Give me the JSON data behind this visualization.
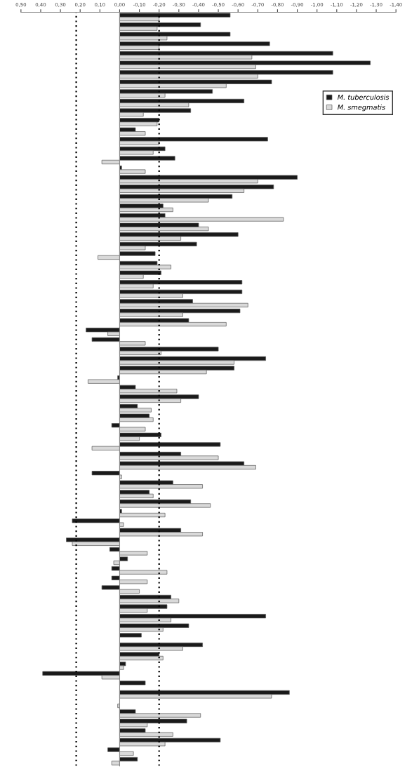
{
  "chart_data": {
    "type": "bar",
    "orientation": "horizontal",
    "categories": [
      null,
      null,
      null,
      null,
      null,
      null,
      null,
      null,
      null,
      null,
      null,
      null,
      null,
      null,
      null,
      null,
      null,
      null,
      null,
      null,
      null,
      null,
      null,
      null,
      null,
      null,
      null,
      null,
      null,
      null,
      null,
      null,
      null,
      null,
      null,
      null,
      null,
      null,
      null,
      null,
      null,
      null,
      null,
      null,
      null,
      null,
      null,
      null,
      null,
      null,
      null,
      null,
      null,
      null,
      null,
      null,
      null,
      null,
      null,
      null,
      null,
      null,
      null,
      null,
      null,
      null,
      null,
      null,
      null,
      null,
      null,
      null,
      null,
      null,
      null,
      null,
      null,
      null,
      null
    ],
    "series": [
      {
        "name": "M. tuberculosis",
        "color": "#1a1a1a",
        "values": [
          -0.56,
          -0.41,
          -0.56,
          -0.76,
          -1.08,
          -1.27,
          -1.08,
          -0.77,
          -0.47,
          -0.63,
          -0.36,
          -0.2,
          -0.08,
          -0.75,
          -0.23,
          -0.28,
          -0.01,
          -0.9,
          -0.78,
          -0.57,
          -0.22,
          -0.23,
          -0.4,
          -0.6,
          -0.39,
          -0.18,
          -0.19,
          -0.21,
          -0.62,
          -0.62,
          -0.37,
          -0.61,
          -0.35,
          0.17,
          0.14,
          -0.5,
          -0.74,
          -0.58,
          0.01,
          -0.08,
          -0.4,
          -0.09,
          -0.15,
          0.04,
          -0.21,
          -0.51,
          -0.31,
          -0.63,
          0.14,
          -0.27,
          -0.15,
          -0.36,
          -0.01,
          0.24,
          -0.31,
          0.27,
          0.05,
          -0.04,
          0.04,
          0.04,
          0.09,
          -0.26,
          -0.24,
          -0.74,
          -0.35,
          -0.11,
          -0.42,
          -0.2,
          -0.03,
          0.39,
          -0.13,
          -0.86,
          null,
          -0.08,
          -0.34,
          -0.13,
          -0.51,
          0.06,
          -0.09
        ]
      },
      {
        "name": "M. smegmatis",
        "color": "#d9d9d9",
        "values": [
          -0.2,
          -0.19,
          -0.24,
          -0.2,
          -0.67,
          -0.69,
          -0.7,
          -0.54,
          -0.23,
          -0.35,
          -0.12,
          -0.19,
          -0.13,
          -0.2,
          -0.17,
          0.09,
          -0.13,
          -0.7,
          -0.63,
          -0.45,
          -0.27,
          -0.83,
          -0.45,
          -0.31,
          -0.13,
          0.11,
          -0.26,
          -0.12,
          -0.17,
          -0.32,
          -0.65,
          -0.32,
          -0.54,
          0.06,
          -0.13,
          -0.21,
          -0.58,
          -0.44,
          0.16,
          -0.29,
          -0.31,
          -0.16,
          -0.17,
          -0.13,
          -0.1,
          0.14,
          -0.5,
          -0.69,
          -0.01,
          -0.42,
          -0.17,
          -0.46,
          -0.23,
          -0.02,
          -0.42,
          0.24,
          -0.14,
          0.03,
          -0.24,
          -0.14,
          -0.1,
          -0.3,
          -0.14,
          -0.26,
          -0.22,
          null,
          -0.32,
          -0.22,
          -0.02,
          0.09,
          null,
          -0.77,
          0.01,
          -0.41,
          -0.14,
          -0.27,
          -0.23,
          -0.07,
          0.04
        ]
      }
    ],
    "xlim": [
      0.5,
      -1.4
    ],
    "xticks": [
      {
        "value": 0.5,
        "label": "0,50"
      },
      {
        "value": 0.4,
        "label": "0,40"
      },
      {
        "value": 0.3,
        "label": "0,30"
      },
      {
        "value": 0.2,
        "label": "0,20"
      },
      {
        "value": 0.1,
        "label": "0,10"
      },
      {
        "value": 0,
        "label": "0,00"
      },
      {
        "value": -0.1,
        "label": "-0,10"
      },
      {
        "value": -0.2,
        "label": "-0,20"
      },
      {
        "value": -0.3,
        "label": "-0,30"
      },
      {
        "value": -0.4,
        "label": "-0,40"
      },
      {
        "value": -0.5,
        "label": "-0,50"
      },
      {
        "value": -0.6,
        "label": "-0,60"
      },
      {
        "value": -0.7,
        "label": "-0,70"
      },
      {
        "value": -0.8,
        "label": "-0,80"
      },
      {
        "value": -0.9,
        "label": "-0,90"
      },
      {
        "value": -1.0,
        "label": "-1,00"
      },
      {
        "value": -1.1,
        "label": "-1,10"
      },
      {
        "value": -1.2,
        "label": "-1,20"
      },
      {
        "value": -1.3,
        "label": "-1,30"
      },
      {
        "value": -1.4,
        "label": "-1,40"
      }
    ],
    "ref_lines": [
      {
        "axis": "x",
        "value": 0.22,
        "color": "#000000",
        "line_style": "dotted"
      },
      {
        "axis": "x",
        "value": -0.2,
        "color": "#000000",
        "line_style": "dotted"
      }
    ],
    "grid": false,
    "legend": "top right"
  }
}
